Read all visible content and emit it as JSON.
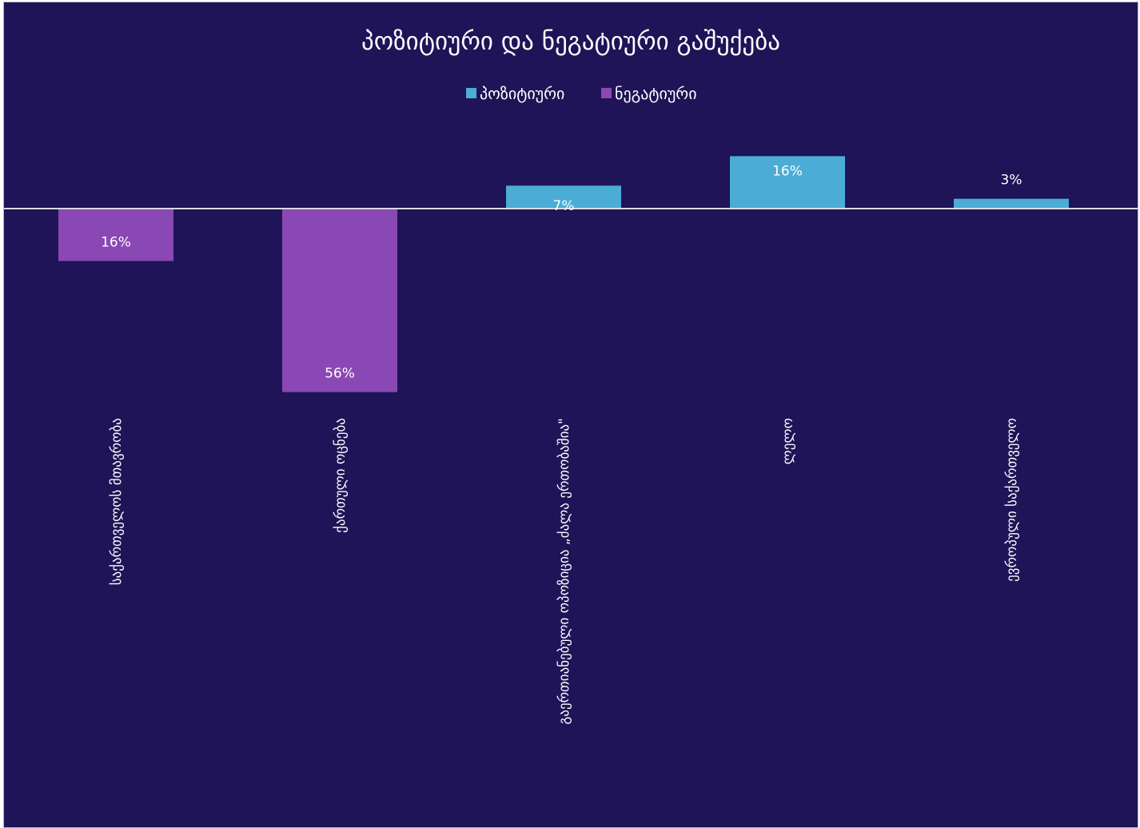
{
  "chart_data": {
    "type": "bar",
    "title": "პოზიტიური და ნეგატიური გაშუქება",
    "categories": [
      "საქართველოს მთავრობა",
      "ქართული ოცნება",
      "გაერთიანებული ოპოზიცია „ძალა ერთობაშია\"",
      "ლელო",
      "ევროპული საქართველო"
    ],
    "series": [
      {
        "name": "პოზიტიური",
        "color": "#4bacd6",
        "values": [
          null,
          null,
          7,
          16,
          3
        ]
      },
      {
        "name": "ნეგატიური",
        "color": "#8a48b4",
        "values": [
          -16,
          -56,
          null,
          null,
          null
        ]
      }
    ],
    "data_labels": [
      "16%",
      "56%",
      "7%",
      "16%",
      "3%"
    ],
    "legend_position": "top",
    "grid": false,
    "axis_color": "#d9d9e6",
    "background": "#1e1457"
  }
}
